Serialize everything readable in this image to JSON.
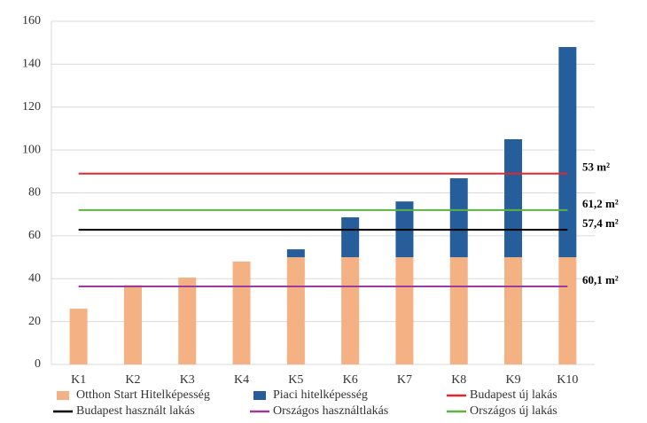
{
  "chart_data": {
    "type": "bar",
    "stacked": true,
    "categories": [
      "K1",
      "K2",
      "K3",
      "K4",
      "K5",
      "K6",
      "K7",
      "K8",
      "K9",
      "K10"
    ],
    "series": [
      {
        "name": "Otthon Start Hitelképesség",
        "color": "#f4b183",
        "values": [
          26,
          37,
          40.5,
          48,
          50,
          50,
          50,
          50,
          50,
          50
        ]
      },
      {
        "name": "Piaci hitelképesség",
        "color": "#255e9b",
        "values": [
          0,
          0,
          0,
          0,
          3.7,
          18.6,
          26,
          36.8,
          55,
          98
        ]
      },
      {
        "name": "Budapest új lakás",
        "type": "line",
        "color": "#e8262a",
        "annotation": "53 m²",
        "values": [
          89,
          89,
          89,
          89,
          89,
          89,
          89,
          89,
          89,
          89
        ]
      },
      {
        "name": "Budapest használt lakás",
        "type": "line",
        "color": "#000000",
        "annotation": "57,4 m²",
        "values": [
          62.8,
          62.8,
          62.8,
          62.8,
          62.8,
          62.8,
          62.8,
          62.8,
          62.8,
          62.8
        ]
      },
      {
        "name": "Országos használtlakás",
        "type": "line",
        "color": "#9c3b9c",
        "annotation": "60,1 m²",
        "values": [
          36.4,
          36.4,
          36.4,
          36.4,
          36.4,
          36.4,
          36.4,
          36.4,
          36.4,
          36.4
        ]
      },
      {
        "name": "Országos új lakás",
        "type": "line",
        "color": "#5bb33f",
        "annotation": "61,2 m²",
        "values": [
          72,
          72,
          72,
          72,
          72,
          72,
          72,
          72,
          72,
          72
        ]
      }
    ],
    "ylim": [
      0,
      160
    ],
    "yticks": [
      0,
      20,
      40,
      60,
      80,
      100,
      120,
      140,
      160
    ],
    "grid": true,
    "legend": "bottom"
  }
}
